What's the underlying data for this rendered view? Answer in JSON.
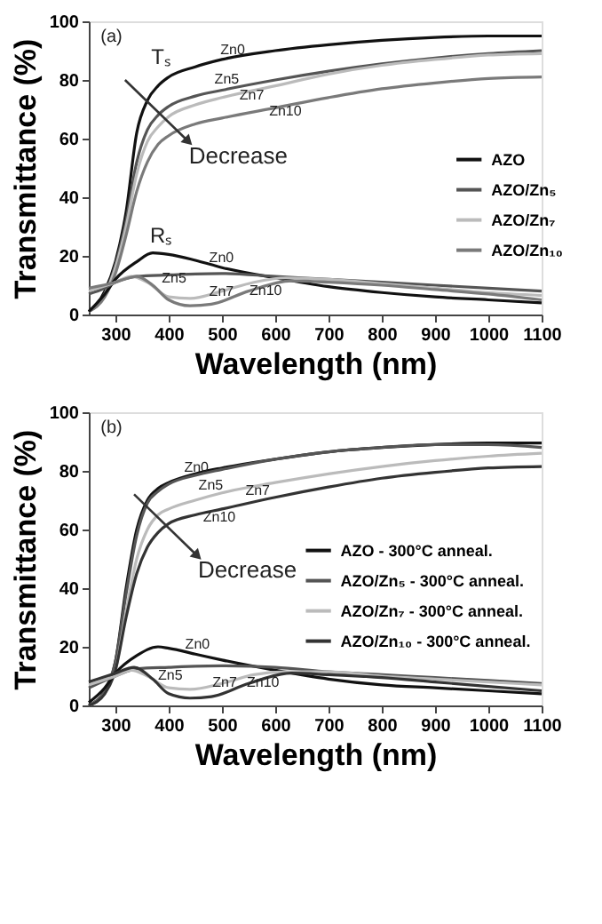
{
  "chart_data": [
    {
      "type": "line",
      "xlabel": "Wavelength (nm)",
      "ylabel": "Transmittance (%)",
      "xlim": [
        250,
        1100
      ],
      "ylim": [
        0,
        100
      ],
      "xticks": [
        300,
        400,
        500,
        600,
        700,
        800,
        900,
        1000,
        1100
      ],
      "yticks": [
        0,
        20,
        40,
        60,
        80,
        100
      ],
      "grid": false,
      "legend": "right",
      "x": [
        250,
        280,
        300,
        320,
        340,
        360,
        380,
        400,
        450,
        500,
        600,
        700,
        800,
        900,
        1000,
        1100
      ],
      "series": [
        {
          "name": "AZO",
          "color": "#111111",
          "values": [
            1,
            8,
            18,
            35,
            62,
            73,
            78,
            81,
            84.5,
            87,
            90,
            92,
            93.5,
            94.5,
            95,
            95
          ]
        },
        {
          "name": "AZO/Zn₅",
          "color": "#555555",
          "values": [
            1,
            7,
            17,
            32,
            52,
            63,
            68,
            71,
            74.5,
            76.5,
            80,
            83,
            85.5,
            87.5,
            89,
            90
          ]
        },
        {
          "name": "AZO/Zn₇",
          "color": "#bbbbbb",
          "values": [
            1,
            7,
            16,
            30,
            48,
            59,
            64,
            67.5,
            71.5,
            74,
            78,
            82,
            85,
            87,
            88.5,
            89
          ]
        },
        {
          "name": "AZO/Zn₁₀",
          "color": "#7a7a7a",
          "values": [
            1,
            6,
            14,
            27,
            42,
            52,
            58,
            61,
            65,
            67,
            70.5,
            74,
            77,
            79,
            80.5,
            81
          ]
        },
        {
          "color": "#111111",
          "x": [
            250,
            280,
            300,
            340,
            370,
            400,
            450,
            500,
            600,
            700,
            800,
            900,
            1000,
            1100
          ],
          "values": [
            1,
            7,
            12,
            18,
            21,
            20.5,
            18.5,
            16,
            12.5,
            9.5,
            7.5,
            6,
            5,
            4
          ]
        },
        {
          "color": "#555555",
          "x": [
            250,
            280,
            300,
            340,
            400,
            500,
            600,
            700,
            800,
            900,
            1000,
            1100
          ],
          "values": [
            7,
            9,
            11,
            13,
            13.5,
            14,
            13,
            12,
            11,
            10,
            9,
            8
          ]
        },
        {
          "color": "#bbbbbb",
          "x": [
            250,
            300,
            330,
            360,
            400,
            440,
            500,
            560,
            620,
            700,
            800,
            900,
            1000,
            1100
          ],
          "values": [
            8,
            11,
            13,
            11,
            6,
            5.5,
            8,
            11,
            12.5,
            12,
            10.5,
            9,
            7.5,
            6.5
          ]
        },
        {
          "color": "#7a7a7a",
          "x": [
            250,
            300,
            340,
            370,
            400,
            440,
            480,
            550,
            630,
            700,
            800,
            900,
            1000,
            1100
          ],
          "values": [
            9,
            11,
            13,
            10,
            5,
            3,
            3.5,
            8,
            11.5,
            11,
            10,
            8.5,
            7,
            5
          ]
        }
      ],
      "annotations": [
        "(a)",
        "Tₛ",
        "Rₛ",
        "Decrease",
        {
          "text": "Zn0",
          "x": 520,
          "y": 90
        },
        {
          "text": "Zn5",
          "x": 509,
          "y": 80
        },
        {
          "text": "Zn7",
          "x": 556,
          "y": 74.5
        },
        {
          "text": "Zn10",
          "x": 619,
          "y": 69
        },
        {
          "text": "Zn0",
          "x": 499,
          "y": 19
        },
        {
          "text": "Zn5",
          "x": 410,
          "y": 12
        },
        {
          "text": "Zn7",
          "x": 499,
          "y": 7.5
        },
        {
          "text": "Zn10",
          "x": 582,
          "y": 8
        }
      ]
    },
    {
      "type": "line",
      "xlabel": "Wavelength (nm)",
      "ylabel": "Transmittance (%)",
      "xlim": [
        250,
        1100
      ],
      "ylim": [
        0,
        100
      ],
      "xticks": [
        300,
        400,
        500,
        600,
        700,
        800,
        900,
        1000,
        1100
      ],
      "yticks": [
        0,
        20,
        40,
        60,
        80,
        100
      ],
      "grid": false,
      "legend": "right",
      "x": [
        250,
        280,
        300,
        320,
        340,
        360,
        380,
        400,
        450,
        500,
        600,
        700,
        800,
        900,
        1000,
        1100
      ],
      "series": [
        {
          "name": "AZO - 300°C anneal.",
          "color": "#111111",
          "values": [
            0,
            5,
            15,
            40,
            60,
            70,
            74,
            76,
            79,
            81,
            84,
            86.5,
            88,
            89,
            89.5,
            89.5
          ]
        },
        {
          "name": "AZO/Zn₅ - 300°C anneal.",
          "color": "#555555",
          "values": [
            0,
            5,
            15,
            38,
            58,
            69,
            73,
            75.5,
            78.5,
            80.5,
            84,
            86.5,
            88,
            89,
            89,
            88
          ]
        },
        {
          "name": "AZO/Zn₇ - 300°C anneal.",
          "color": "#bbbbbb",
          "values": [
            0,
            4,
            12,
            32,
            50,
            60,
            65,
            67,
            70,
            72.5,
            76,
            79,
            81.5,
            83.5,
            85,
            86
          ]
        },
        {
          "name": "AZO/Zn₁₀ - 300°C anneal.",
          "color": "#333333",
          "values": [
            0,
            4,
            12,
            30,
            45,
            54,
            59,
            62,
            65,
            67,
            71,
            74.5,
            77.5,
            79.5,
            81,
            81.5
          ]
        },
        {
          "color": "#111111",
          "x": [
            250,
            280,
            300,
            340,
            380,
            400,
            450,
            500,
            600,
            700,
            800,
            900,
            1000,
            1100
          ],
          "values": [
            1,
            6,
            11,
            17,
            20,
            19.5,
            17.5,
            15.5,
            12,
            9,
            7,
            6,
            5,
            4
          ]
        },
        {
          "color": "#555555",
          "x": [
            250,
            300,
            340,
            400,
            500,
            600,
            700,
            800,
            900,
            1000,
            1100
          ],
          "values": [
            6,
            10,
            12.5,
            13,
            13.5,
            13,
            11.5,
            10.5,
            9.5,
            8.5,
            7.5
          ]
        },
        {
          "color": "#bbbbbb",
          "x": [
            250,
            300,
            330,
            360,
            400,
            440,
            500,
            560,
            620,
            700,
            800,
            900,
            1000,
            1100
          ],
          "values": [
            7,
            10,
            12,
            10,
            6,
            5.5,
            7.5,
            10.5,
            11.5,
            11.5,
            10,
            9,
            8,
            7
          ]
        },
        {
          "color": "#333333",
          "x": [
            250,
            300,
            335,
            370,
            400,
            440,
            480,
            550,
            630,
            700,
            800,
            900,
            1000,
            1100
          ],
          "values": [
            8,
            11,
            13,
            9,
            4,
            2.5,
            3,
            7.5,
            11,
            10.5,
            9.5,
            8,
            6.5,
            5
          ]
        }
      ],
      "annotations": [
        "(b)",
        "Decrease",
        {
          "text": "Zn0",
          "x": 452,
          "y": 81
        },
        {
          "text": "Zn5",
          "x": 479,
          "y": 75
        },
        {
          "text": "Zn7",
          "x": 567,
          "y": 73
        },
        {
          "text": "Zn10",
          "x": 495,
          "y": 64
        },
        {
          "text": "Zn0",
          "x": 454,
          "y": 20.5
        },
        {
          "text": "Zn5",
          "x": 403,
          "y": 10
        },
        {
          "text": "Zn7",
          "x": 505,
          "y": 7.5
        },
        {
          "text": "Zn10",
          "x": 577,
          "y": 7.5
        }
      ]
    }
  ]
}
